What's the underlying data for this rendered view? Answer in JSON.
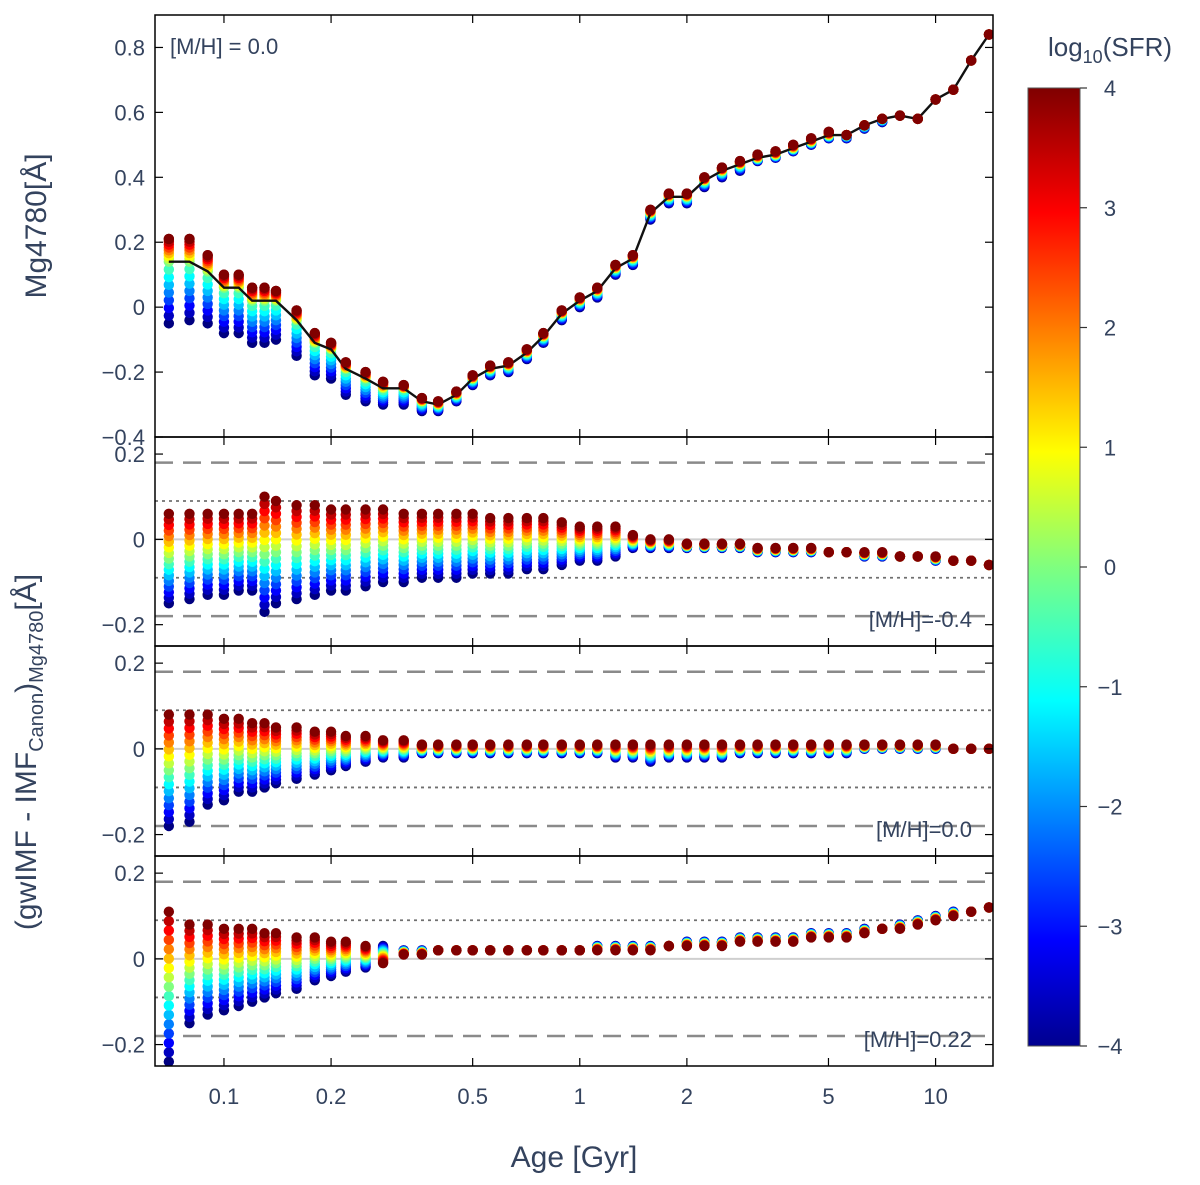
{
  "chart_data": {
    "type": "scatter",
    "xlabel": "Age [Gyr]",
    "xscale": "log",
    "xlim": [
      0.064,
      14.5
    ],
    "x_ticks": [
      {
        "value": 0.1,
        "label": "0.1"
      },
      {
        "value": 0.2,
        "label": "0.2"
      },
      {
        "value": 0.5,
        "label": "0.5"
      },
      {
        "value": 1,
        "label": "1"
      },
      {
        "value": 2,
        "label": "2"
      },
      {
        "value": 5,
        "label": "5"
      },
      {
        "value": 10,
        "label": "10"
      }
    ],
    "ages": [
      0.07,
      0.08,
      0.09,
      0.1,
      0.11,
      0.12,
      0.13,
      0.14,
      0.16,
      0.18,
      0.2,
      0.22,
      0.25,
      0.28,
      0.32,
      0.36,
      0.4,
      0.45,
      0.5,
      0.56,
      0.63,
      0.71,
      0.79,
      0.89,
      1.0,
      1.12,
      1.26,
      1.41,
      1.58,
      1.78,
      2.0,
      2.24,
      2.51,
      2.82,
      3.16,
      3.55,
      3.98,
      4.47,
      5.01,
      5.62,
      6.31,
      7.08,
      7.94,
      8.91,
      10.0,
      11.22,
      12.59,
      14.13
    ],
    "colorbar": {
      "label": "log10(SFR)",
      "label_main": "log",
      "label_sub": "10",
      "label_rest": "(SFR)",
      "range": [
        -4,
        4
      ],
      "ticks": [
        "4",
        "3",
        "2",
        "1",
        "0",
        "−1",
        "−2",
        "−3",
        "−4"
      ],
      "colormap": "jet",
      "levels": [
        -4,
        -3.5,
        -3,
        -2.5,
        -2,
        -1.5,
        -1,
        -0.5,
        0,
        0.5,
        1,
        1.5,
        2,
        2.5,
        3,
        3.5,
        4
      ]
    },
    "shared_ylabel": "(gwIMF - IMF_Canon)_Mg4780[Å]",
    "shared_ylabel_parts": {
      "a": "(gwIMF - IMF",
      "b": "Canon",
      "c": ")",
      "d": "Mg4780",
      "e": "[Å]"
    },
    "panels": [
      {
        "id": "top",
        "ylabel": "Mg4780[Å]",
        "annotation": "[M/H] = 0.0",
        "ylim": [
          -0.4,
          0.9
        ],
        "y_ticks": [
          {
            "value": 0.8,
            "label": "0.8"
          },
          {
            "value": 0.6,
            "label": "0.6"
          },
          {
            "value": 0.4,
            "label": "0.4"
          },
          {
            "value": 0.2,
            "label": "0.2"
          },
          {
            "value": 0,
            "label": "0"
          },
          {
            "value": -0.2,
            "label": "−0.2"
          },
          {
            "value": -0.4,
            "label": "−0.4"
          }
        ],
        "canonical_line": [
          0.14,
          0.14,
          0.11,
          0.06,
          0.06,
          0.02,
          0.02,
          0.02,
          -0.04,
          -0.11,
          -0.13,
          -0.19,
          -0.22,
          -0.25,
          -0.25,
          -0.29,
          -0.3,
          -0.27,
          -0.22,
          -0.19,
          -0.18,
          -0.14,
          -0.09,
          -0.02,
          0.02,
          0.05,
          0.12,
          0.15,
          0.29,
          0.34,
          0.34,
          0.39,
          0.42,
          0.44,
          0.46,
          0.47,
          0.49,
          0.51,
          0.53,
          0.53,
          0.56,
          0.58,
          0.59,
          0.58,
          0.64,
          0.67,
          0.76,
          0.84
        ],
        "spread_high": [
          0.07,
          0.07,
          0.05,
          0.04,
          0.04,
          0.04,
          0.04,
          0.03,
          0.03,
          0.03,
          0.02,
          0.02,
          0.02,
          0.02,
          0.01,
          0.01,
          0.01,
          0.01,
          0.01,
          0.01,
          0.01,
          0.01,
          0.01,
          0.01,
          0.01,
          0.01,
          0.01,
          0.01,
          0.01,
          0.01,
          0.01,
          0.01,
          0.01,
          0.01,
          0.01,
          0.01,
          0.01,
          0.01,
          0.01,
          0.0,
          0.0,
          0.0,
          0.0,
          0.0,
          0.0,
          0.0,
          0.0,
          0.0
        ],
        "spread_low": [
          0.19,
          0.18,
          0.16,
          0.14,
          0.14,
          0.13,
          0.13,
          0.12,
          0.11,
          0.1,
          0.09,
          0.08,
          0.07,
          0.05,
          0.05,
          0.03,
          0.02,
          0.02,
          0.02,
          0.02,
          0.02,
          0.02,
          0.02,
          0.02,
          0.02,
          0.02,
          0.02,
          0.02,
          0.02,
          0.02,
          0.02,
          0.02,
          0.02,
          0.02,
          0.01,
          0.01,
          0.01,
          0.01,
          0.01,
          0.01,
          0.01,
          0.01,
          0.0,
          0.0,
          0.0,
          0.0,
          0.0,
          0.0
        ]
      },
      {
        "id": "mh-0.4",
        "annotation": "[M/H]=-0.4",
        "ylim": [
          -0.25,
          0.24
        ],
        "y_ticks": [
          {
            "value": 0.2,
            "label": "0.2"
          },
          {
            "value": 0,
            "label": "0"
          },
          {
            "value": -0.2,
            "label": "−0.2"
          }
        ],
        "dashed_lines": [
          0.18,
          -0.18
        ],
        "dotted_lines": [
          0.09,
          -0.09
        ],
        "zero_line": 0,
        "max_diff": [
          0.06,
          0.06,
          0.06,
          0.06,
          0.06,
          0.06,
          0.1,
          0.09,
          0.08,
          0.08,
          0.07,
          0.07,
          0.07,
          0.07,
          0.06,
          0.06,
          0.06,
          0.06,
          0.06,
          0.05,
          0.05,
          0.05,
          0.05,
          0.04,
          0.03,
          0.03,
          0.03,
          0.01,
          0.0,
          0.0,
          -0.01,
          -0.01,
          -0.01,
          -0.01,
          -0.02,
          -0.02,
          -0.02,
          -0.02,
          -0.03,
          -0.03,
          -0.03,
          -0.03,
          -0.04,
          -0.04,
          -0.04,
          -0.05,
          -0.05,
          -0.06
        ],
        "min_diff": [
          -0.15,
          -0.14,
          -0.13,
          -0.13,
          -0.12,
          -0.12,
          -0.17,
          -0.15,
          -0.14,
          -0.13,
          -0.12,
          -0.12,
          -0.11,
          -0.1,
          -0.1,
          -0.09,
          -0.09,
          -0.09,
          -0.08,
          -0.08,
          -0.08,
          -0.07,
          -0.07,
          -0.06,
          -0.05,
          -0.05,
          -0.04,
          -0.02,
          -0.02,
          -0.02,
          -0.02,
          -0.02,
          -0.02,
          -0.02,
          -0.03,
          -0.03,
          -0.03,
          -0.03,
          -0.03,
          -0.03,
          -0.04,
          -0.04,
          -0.04,
          -0.04,
          -0.05,
          -0.05,
          -0.05,
          -0.06
        ]
      },
      {
        "id": "mh0.0",
        "annotation": "[M/H]=0.0",
        "ylim": [
          -0.25,
          0.24
        ],
        "y_ticks": [
          {
            "value": 0.2,
            "label": "0.2"
          },
          {
            "value": 0,
            "label": "0"
          },
          {
            "value": -0.2,
            "label": "−0.2"
          }
        ],
        "dashed_lines": [
          0.18,
          -0.18
        ],
        "dotted_lines": [
          0.09,
          -0.09
        ],
        "zero_line": 0,
        "max_diff": [
          0.08,
          0.08,
          0.08,
          0.07,
          0.07,
          0.06,
          0.06,
          0.05,
          0.05,
          0.04,
          0.04,
          0.03,
          0.03,
          0.02,
          0.02,
          0.01,
          0.01,
          0.01,
          0.01,
          0.01,
          0.01,
          0.01,
          0.01,
          0.01,
          0.01,
          0.01,
          0.01,
          0.01,
          0.01,
          0.01,
          0.01,
          0.01,
          0.01,
          0.01,
          0.01,
          0.01,
          0.01,
          0.01,
          0.01,
          0.01,
          0.01,
          0.01,
          0.01,
          0.01,
          0.01,
          0.0,
          0.0,
          0.0
        ],
        "min_diff": [
          -0.18,
          -0.17,
          -0.13,
          -0.12,
          -0.1,
          -0.1,
          -0.09,
          -0.08,
          -0.07,
          -0.06,
          -0.05,
          -0.04,
          -0.03,
          -0.02,
          -0.02,
          -0.01,
          -0.01,
          -0.01,
          -0.01,
          -0.01,
          -0.01,
          -0.01,
          -0.01,
          -0.01,
          -0.01,
          -0.01,
          -0.02,
          -0.02,
          -0.03,
          -0.02,
          -0.02,
          -0.02,
          -0.02,
          -0.01,
          -0.01,
          -0.01,
          -0.01,
          -0.01,
          -0.01,
          -0.01,
          0.0,
          0.0,
          0.0,
          0.0,
          0.0,
          0.0,
          0.0,
          0.0
        ]
      },
      {
        "id": "mh0.22",
        "annotation": "[M/H]=0.22",
        "ylim": [
          -0.25,
          0.24
        ],
        "y_ticks": [
          {
            "value": 0.2,
            "label": "0.2"
          },
          {
            "value": 0,
            "label": "0"
          },
          {
            "value": -0.2,
            "label": "−0.2"
          }
        ],
        "dashed_lines": [
          0.18,
          -0.18
        ],
        "dotted_lines": [
          0.09,
          -0.09
        ],
        "zero_line": 0,
        "max_diff": [
          0.11,
          0.08,
          0.08,
          0.07,
          0.07,
          0.07,
          0.06,
          0.06,
          0.05,
          0.05,
          0.04,
          0.04,
          0.03,
          0.03,
          0.02,
          0.02,
          0.02,
          0.02,
          0.02,
          0.02,
          0.02,
          0.02,
          0.02,
          0.02,
          0.02,
          0.03,
          0.03,
          0.03,
          0.03,
          0.03,
          0.04,
          0.04,
          0.04,
          0.05,
          0.05,
          0.05,
          0.05,
          0.06,
          0.06,
          0.06,
          0.07,
          0.07,
          0.08,
          0.09,
          0.1,
          0.11,
          0.11,
          0.12
        ],
        "min_diff": [
          -0.24,
          -0.15,
          -0.13,
          -0.12,
          -0.11,
          -0.1,
          -0.09,
          -0.08,
          -0.07,
          -0.05,
          -0.04,
          -0.03,
          -0.02,
          -0.01,
          0.01,
          0.01,
          0.02,
          0.02,
          0.02,
          0.02,
          0.02,
          0.02,
          0.02,
          0.02,
          0.02,
          0.02,
          0.02,
          0.02,
          0.02,
          0.03,
          0.03,
          0.03,
          0.03,
          0.04,
          0.04,
          0.04,
          0.04,
          0.05,
          0.05,
          0.05,
          0.06,
          0.07,
          0.07,
          0.08,
          0.09,
          0.1,
          0.11,
          0.12
        ],
        "inverted_from_index": 13
      }
    ]
  }
}
